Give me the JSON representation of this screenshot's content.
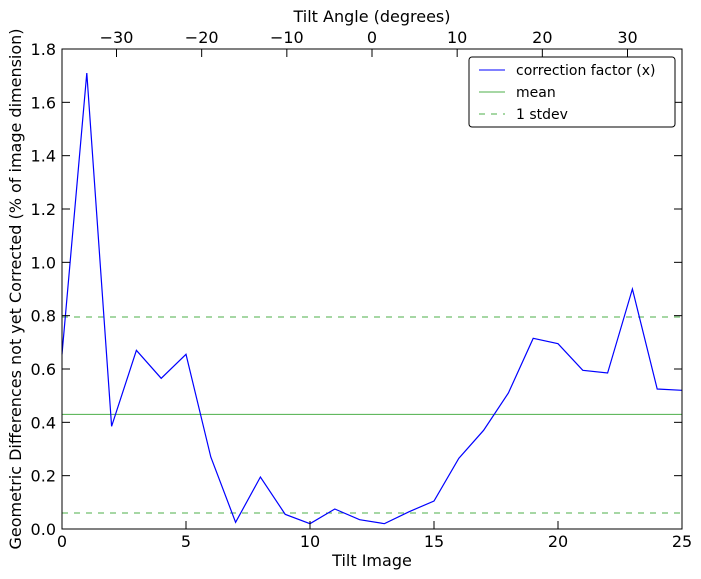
{
  "chart_data": {
    "type": "line",
    "title": "",
    "xlabel": "Tilt Image",
    "ylabel": "Geometric Differences not yet Corrected (% of image dimension)",
    "top_xlabel": "Tilt Angle (degrees)",
    "xlim": [
      0,
      25
    ],
    "ylim": [
      0.0,
      1.8
    ],
    "top_xlim": [
      -36.4,
      36.4
    ],
    "xticks": [
      0,
      5,
      10,
      15,
      20,
      25
    ],
    "xtick_labels": [
      "0",
      "5",
      "10",
      "15",
      "20",
      "25"
    ],
    "yticks": [
      0.0,
      0.2,
      0.4,
      0.6,
      0.8,
      1.0,
      1.2,
      1.4,
      1.6,
      1.8
    ],
    "ytick_labels": [
      "0.0",
      "0.2",
      "0.4",
      "0.6",
      "0.8",
      "1.0",
      "1.2",
      "1.4",
      "1.6",
      "1.8"
    ],
    "top_xticks": [
      -30,
      -20,
      -10,
      0,
      10,
      20,
      30
    ],
    "top_xtick_labels": [
      "−30",
      "−20",
      "−10",
      "0",
      "10",
      "20",
      "30"
    ],
    "grid": false,
    "legend_position": "top-right",
    "series": [
      {
        "name": "correction factor (x)",
        "color": "#0000ff",
        "style": "solid",
        "x": [
          0,
          1,
          2,
          3,
          4,
          5,
          6,
          7,
          8,
          9,
          10,
          11,
          12,
          13,
          14,
          15,
          16,
          17,
          18,
          19,
          20,
          21,
          22,
          23,
          24,
          25
        ],
        "y": [
          0.655,
          1.71,
          0.385,
          0.67,
          0.565,
          0.655,
          0.27,
          0.025,
          0.195,
          0.055,
          0.02,
          0.075,
          0.035,
          0.02,
          0.065,
          0.105,
          0.265,
          0.37,
          0.51,
          0.715,
          0.695,
          0.595,
          0.585,
          0.9,
          0.525,
          0.52
        ]
      },
      {
        "name": "mean",
        "color": "#4daf4a",
        "style": "solid",
        "constant": 0.43
      },
      {
        "name": "1 stdev",
        "color": "#4daf4a",
        "style": "dashed",
        "constant": [
          0.06,
          0.795
        ]
      }
    ]
  }
}
